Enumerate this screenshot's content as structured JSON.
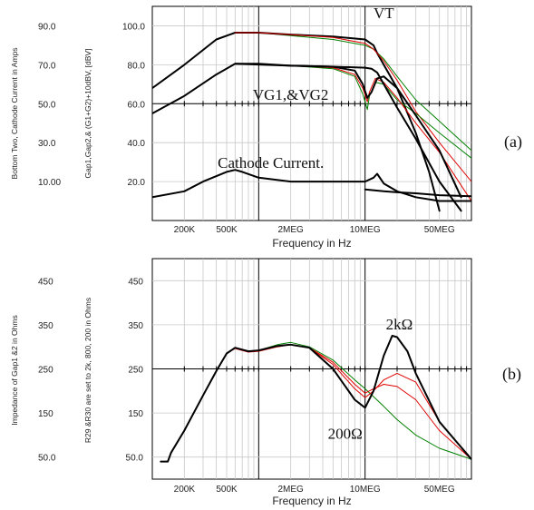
{
  "chart_data": [
    {
      "type": "line",
      "panel_label": "(a)",
      "xlabel": "Frequency in Hz",
      "x_scale": "log",
      "xlim": [
        100000,
        100000000
      ],
      "x_ticks": [
        {
          "value": 200000,
          "label": "200K"
        },
        {
          "value": 500000,
          "label": "500K"
        },
        {
          "value": 2000000,
          "label": "2MEG"
        },
        {
          "value": 10000000,
          "label": "10MEG"
        },
        {
          "value": 50000000,
          "label": "50MEG"
        }
      ],
      "ylabel_left": "Bottom Two, Cathode Current  in Amps",
      "ylabel_right": "Gap1,Gap2,& (G1+G2)+10dBV, [dBV]",
      "ylim": [
        0,
        110
      ],
      "y_ticks": [
        {
          "value": 20,
          "label": "20.0",
          "left_label": "10.00"
        },
        {
          "value": 40,
          "label": "40.0",
          "left_label": "30.0"
        },
        {
          "value": 60,
          "label": "60.0",
          "left_label": "50.0"
        },
        {
          "value": 80,
          "label": "80.0",
          "left_label": "70.0"
        },
        {
          "value": 100,
          "label": "100.0",
          "left_label": "90.0"
        }
      ],
      "annotations": [
        {
          "text": "VT",
          "x": 15000000,
          "y": 104
        },
        {
          "text": "VG1,&VG2",
          "x": 2000000,
          "y": 62
        },
        {
          "text": "Cathode Current.",
          "x": 1300000,
          "y": 27
        }
      ],
      "series": [
        {
          "color": "#008000",
          "width": 1,
          "x": [
            100000,
            200000,
            400000,
            600000,
            1000000,
            2000000,
            5000000,
            10000000,
            12000000,
            15000000,
            20000000,
            30000000,
            50000000,
            100000000
          ],
          "y": [
            68,
            80,
            93,
            96.5,
            96.5,
            95,
            93,
            90,
            88,
            83,
            74,
            62,
            51,
            36
          ]
        },
        {
          "color": "#000000",
          "width": 2,
          "x": [
            100000,
            200000,
            400000,
            600000,
            1000000,
            2000000,
            5000000,
            10000000,
            12000000,
            13000000,
            15000000,
            20000000,
            30000000,
            40000000,
            50000000
          ],
          "y": [
            68,
            80,
            93,
            96.5,
            96.5,
            95.5,
            94.5,
            93,
            90,
            86,
            80,
            68,
            45,
            25,
            5
          ]
        },
        {
          "color": "#e00000",
          "width": 1,
          "x": [
            600000,
            1000000,
            2000000,
            5000000,
            10000000,
            12000000,
            15000000,
            20000000,
            30000000,
            50000000,
            100000000
          ],
          "y": [
            96.5,
            96.5,
            95.5,
            94,
            91,
            88,
            82,
            72,
            56,
            40,
            20
          ]
        },
        {
          "color": "#008000",
          "width": 1,
          "x": [
            100000,
            200000,
            400000,
            600000,
            1000000,
            2000000,
            5000000,
            8000000,
            9500000,
            10500000,
            11000000,
            12500000,
            15000000,
            20000000,
            30000000,
            50000000,
            100000000
          ],
          "y": [
            55,
            64,
            75,
            80.5,
            80.5,
            79.5,
            78,
            74,
            65,
            57,
            64,
            71,
            70,
            62,
            55,
            45,
            32
          ]
        },
        {
          "color": "#e00000",
          "width": 1,
          "x": [
            600000,
            2000000,
            5000000,
            8000000,
            9500000,
            10500000,
            11000000,
            12500000,
            15000000,
            20000000,
            30000000,
            50000000,
            100000000
          ],
          "y": [
            80.5,
            79.5,
            78.5,
            75,
            68,
            61,
            66,
            73,
            71,
            63,
            50,
            35,
            10
          ]
        },
        {
          "color": "#000000",
          "width": 2,
          "x": [
            100000,
            200000,
            400000,
            600000,
            1000000,
            2000000,
            5000000,
            8000000,
            9500000,
            10500000,
            11500000,
            13000000,
            15000000,
            20000000,
            30000000,
            50000000,
            80000000
          ],
          "y": [
            55,
            64,
            75,
            80.5,
            80.5,
            79.5,
            79,
            77,
            70,
            63,
            66,
            73,
            74,
            68,
            54,
            36,
            12
          ]
        },
        {
          "color": "#000000",
          "width": 2,
          "x": [
            600000,
            2000000,
            5000000,
            10000000,
            11500000,
            13000000,
            15000000,
            20000000,
            30000000,
            50000000,
            80000000
          ],
          "y": [
            80.5,
            79.5,
            79,
            78.5,
            78,
            76,
            70,
            58,
            42,
            20,
            5
          ]
        },
        {
          "color": "#000000",
          "width": 2,
          "x": [
            100000,
            200000,
            300000,
            500000,
            600000,
            700000,
            1000000,
            2000000,
            5000000,
            10000000,
            12000000,
            13000000,
            15000000,
            20000000,
            30000000,
            50000000,
            100000000
          ],
          "y": [
            12,
            15,
            20,
            25,
            26,
            25,
            22,
            20,
            20,
            20,
            22,
            24,
            19,
            15,
            12,
            10,
            10
          ]
        },
        {
          "color": "#000000",
          "width": 2,
          "x": [
            10000000,
            15000000,
            20000000,
            30000000,
            50000000,
            100000000
          ],
          "y": [
            16,
            15,
            14.5,
            14,
            13,
            12.5
          ]
        }
      ]
    },
    {
      "type": "line",
      "panel_label": "(b)",
      "xlabel": "Frequency in Hz",
      "x_scale": "log",
      "xlim": [
        100000,
        100000000
      ],
      "x_ticks": [
        {
          "value": 200000,
          "label": "200K"
        },
        {
          "value": 500000,
          "label": "500K"
        },
        {
          "value": 2000000,
          "label": "2MEG"
        },
        {
          "value": 10000000,
          "label": "10MEG"
        },
        {
          "value": 50000000,
          "label": "50MEG"
        }
      ],
      "ylabel_left": "Impedance of Gap1 &2  in Ohms",
      "ylabel_right": "R29 &R30 are set to  2k, 800, 200 in Ohms",
      "ylim": [
        0,
        500
      ],
      "y_ticks": [
        {
          "value": 50,
          "label": "50.0",
          "left_label": "50.0"
        },
        {
          "value": 150,
          "label": "150",
          "left_label": "150"
        },
        {
          "value": 250,
          "label": "250",
          "left_label": "250"
        },
        {
          "value": 350,
          "label": "350",
          "left_label": "350"
        },
        {
          "value": 450,
          "label": "450",
          "left_label": "450"
        }
      ],
      "annotations": [
        {
          "text": "2kΩ",
          "x": 21000000,
          "y": 340
        },
        {
          "text": "200Ω",
          "x": 6500000,
          "y": 92
        }
      ],
      "series": [
        {
          "color": "#008000",
          "width": 1,
          "x": [
            120000,
            140000,
            150000,
            200000,
            300000,
            400000,
            500000,
            600000,
            800000,
            1000000,
            1500000,
            2000000,
            3000000,
            5000000,
            8000000,
            10000000,
            15000000,
            20000000,
            30000000,
            50000000,
            100000000
          ],
          "y": [
            40,
            40,
            60,
            110,
            190,
            245,
            285,
            298,
            290,
            292,
            305,
            310,
            300,
            270,
            225,
            205,
            165,
            135,
            100,
            70,
            45
          ]
        },
        {
          "color": "#e00000",
          "width": 1,
          "x": [
            120000,
            140000,
            150000,
            200000,
            300000,
            400000,
            500000,
            600000,
            800000,
            1000000,
            1500000,
            2000000,
            3000000,
            5000000,
            8000000,
            10000000,
            12000000,
            15000000,
            20000000,
            30000000,
            50000000,
            100000000
          ],
          "y": [
            40,
            40,
            60,
            110,
            190,
            245,
            285,
            296,
            288,
            290,
            300,
            305,
            298,
            260,
            205,
            185,
            200,
            225,
            240,
            220,
            130,
            45
          ]
        },
        {
          "color": "#e00000",
          "width": 1,
          "x": [
            3000000,
            5000000,
            8000000,
            10000000,
            12000000,
            15000000,
            20000000,
            30000000,
            50000000,
            100000000
          ],
          "y": [
            298,
            265,
            215,
            195,
            205,
            215,
            210,
            180,
            110,
            45
          ]
        },
        {
          "color": "#000000",
          "width": 2,
          "x": [
            120000,
            140000,
            150000,
            200000,
            300000,
            400000,
            500000,
            600000,
            800000,
            1000000,
            1500000,
            2000000,
            3000000,
            5000000,
            8000000,
            10000000,
            12000000,
            15000000,
            18000000,
            20000000,
            25000000,
            30000000,
            50000000,
            100000000
          ],
          "y": [
            40,
            40,
            60,
            110,
            190,
            245,
            285,
            298,
            290,
            292,
            302,
            305,
            298,
            250,
            180,
            162,
            200,
            280,
            325,
            322,
            290,
            240,
            130,
            45
          ]
        }
      ]
    }
  ]
}
